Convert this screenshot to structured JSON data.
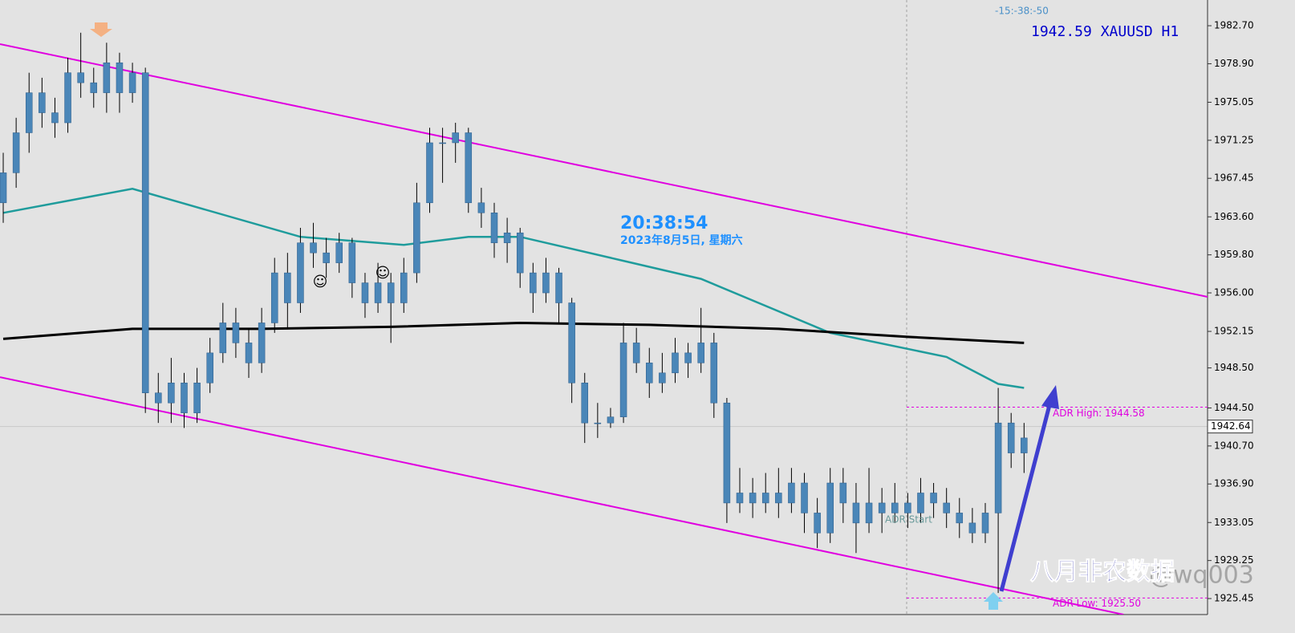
{
  "chart_data": {
    "type": "candlestick",
    "header": "1942.59 XAUUSD H1",
    "countdown": "-15:-38:-50",
    "clock": "20:38:54",
    "date": "2023年8月5日, 星期六",
    "annotation": "八月非农数据",
    "watermark": "@wq003",
    "adr_start": "ADR Start",
    "adr_high": {
      "value": 1944.58,
      "label": "ADR High: 1944.58"
    },
    "adr_low": {
      "value": 1925.5,
      "label": "ADR Low: 1925.50"
    },
    "current_price": 1942.64,
    "candle_color": "#4a86b8",
    "xlim": [
      -0.25,
      93.2
    ],
    "ylim": [
      1923.85,
      1985.27
    ],
    "yticks": [
      {
        "value": 1982.7,
        "label": "1982.70"
      },
      {
        "value": 1978.9,
        "label": "1978.90"
      },
      1975.05,
      1971.25,
      1967.45,
      {
        "value": 1963.6,
        "label": "1963.60"
      },
      {
        "value": 1959.8,
        "label": "1959.80"
      },
      {
        "value": 1956,
        "label": "1956.00"
      },
      1952.15,
      {
        "value": 1948.5,
        "label": "1948.50"
      },
      {
        "value": 1944.5,
        "label": "1944.50"
      },
      {
        "value": 1940.7,
        "label": "1940.70"
      },
      {
        "value": 1936.9,
        "label": "1936.90"
      },
      1933.05,
      1929.25,
      1925.45
    ],
    "open": [
      1965,
      1968,
      1972,
      1976,
      1974,
      1973,
      1978,
      1977,
      1976,
      1979,
      1976,
      1978,
      1946,
      1945,
      1947,
      1944,
      1947,
      1950,
      1953,
      1951,
      1949,
      1953,
      1958,
      1955,
      1961,
      1960,
      1959,
      1961,
      1957,
      1955,
      1957,
      1955,
      1958,
      1965,
      1971,
      1971,
      1972,
      1965,
      1964,
      1961,
      1962,
      1958,
      1956,
      1958,
      1955,
      1947,
      1943,
      1943,
      1943.6,
      1951,
      1949,
      1947,
      1948,
      1950,
      1949,
      1951,
      1945,
      1935,
      1936,
      1935,
      1936,
      1935,
      1937,
      1934,
      1932,
      1937,
      1935,
      1933,
      1935,
      1934,
      1935,
      1934,
      1936,
      1935,
      1934,
      1933,
      1932,
      1934,
      1943,
      1940
    ],
    "high": [
      1970,
      1973.5,
      1978,
      1977.5,
      1975.5,
      1979.5,
      1982,
      1978.5,
      1981,
      1980,
      1979,
      1978.5,
      1948,
      1949.5,
      1948,
      1948.5,
      1951.5,
      1955,
      1954.5,
      1952.5,
      1954.5,
      1959.5,
      1960,
      1962.5,
      1963,
      1961.5,
      1962,
      1961.5,
      1958,
      1959,
      1958,
      1959.5,
      1967,
      1972.5,
      1972.5,
      1973,
      1972.5,
      1966.5,
      1965,
      1963.5,
      1962.5,
      1959,
      1959.5,
      1958.5,
      1955.5,
      1948,
      1945,
      1944.5,
      1953,
      1952.5,
      1950.5,
      1950,
      1951.5,
      1951,
      1954.5,
      1952,
      1945.5,
      1938.5,
      1937.5,
      1938,
      1938.5,
      1938.5,
      1938,
      1935.5,
      1938.5,
      1938.5,
      1937,
      1938.5,
      1936.5,
      1937,
      1936,
      1937.5,
      1937,
      1936.5,
      1935.5,
      1934.5,
      1935,
      1946.5,
      1944,
      1943
    ],
    "low": [
      1963,
      1966.5,
      1970,
      1972.5,
      1971.5,
      1972,
      1975.5,
      1974.5,
      1974,
      1974,
      1975,
      1944,
      1943,
      1943,
      1942.5,
      1943,
      1946,
      1949,
      1949.5,
      1947.5,
      1948,
      1952,
      1952.5,
      1954,
      1958.5,
      1957.5,
      1958,
      1955.5,
      1953.5,
      1954,
      1951,
      1954,
      1957,
      1964,
      1967,
      1969,
      1964,
      1962.5,
      1959.5,
      1959,
      1956.5,
      1954,
      1955,
      1953,
      1945,
      1941,
      1941.5,
      1942.5,
      1943,
      1948,
      1945.5,
      1946,
      1947,
      1947.5,
      1948,
      1943.5,
      1933,
      1934,
      1933.5,
      1934,
      1933.5,
      1934,
      1932,
      1930.5,
      1931,
      1933,
      1930,
      1932,
      1932,
      1933,
      1932.5,
      1933,
      1933.5,
      1932.5,
      1931.5,
      1931,
      1931,
      1926,
      1938.5,
      1938
    ],
    "close": [
      1968,
      1972,
      1976,
      1974,
      1973,
      1978,
      1977,
      1976,
      1979,
      1976,
      1978,
      1946,
      1945,
      1947,
      1944,
      1947,
      1950,
      1953,
      1951,
      1949,
      1953,
      1958,
      1955,
      1961,
      1960,
      1959,
      1961,
      1957,
      1955,
      1957,
      1955,
      1958,
      1965,
      1971,
      1971,
      1972,
      1965,
      1964,
      1961,
      1962,
      1958,
      1956,
      1958,
      1955,
      1947,
      1943,
      1943,
      1943.6,
      1951,
      1949,
      1947,
      1948,
      1950,
      1949,
      1951,
      1945,
      1935,
      1936,
      1935,
      1936,
      1935,
      1937,
      1934,
      1932,
      1937,
      1935,
      1933,
      1935,
      1934,
      1935,
      1934,
      1936,
      1935,
      1934,
      1933,
      1932,
      1934,
      1943,
      1940,
      1941.5
    ],
    "overlays": [
      {
        "color": "#1f9c9c",
        "width": 2.5,
        "x": [
          0,
          10,
          23,
          31,
          36,
          40,
          48,
          54,
          64,
          73,
          77,
          79
        ],
        "values": [
          1964,
          1966.4,
          1961.6,
          1960.8,
          1961.6,
          1961.6,
          1959.2,
          1957.4,
          1952,
          1949.6,
          1946.9,
          1946.5
        ]
      },
      {
        "color": "#000000",
        "width": 3,
        "x": [
          0,
          10,
          20,
          30,
          40,
          50,
          60,
          70,
          79
        ],
        "values": [
          1951.4,
          1952.4,
          1952.4,
          1952.6,
          1953,
          1952.8,
          1952.4,
          1951.6,
          1951
        ]
      },
      {
        "color": "#e000e0",
        "width": 2,
        "x": [
          -0.25,
          93.2
        ],
        "values": [
          1980.86,
          1955.6
        ]
      },
      {
        "color": "#e000e0",
        "width": 2,
        "x": [
          -0.25,
          86.7
        ],
        "values": [
          1947.58,
          1923.85
        ]
      }
    ]
  }
}
